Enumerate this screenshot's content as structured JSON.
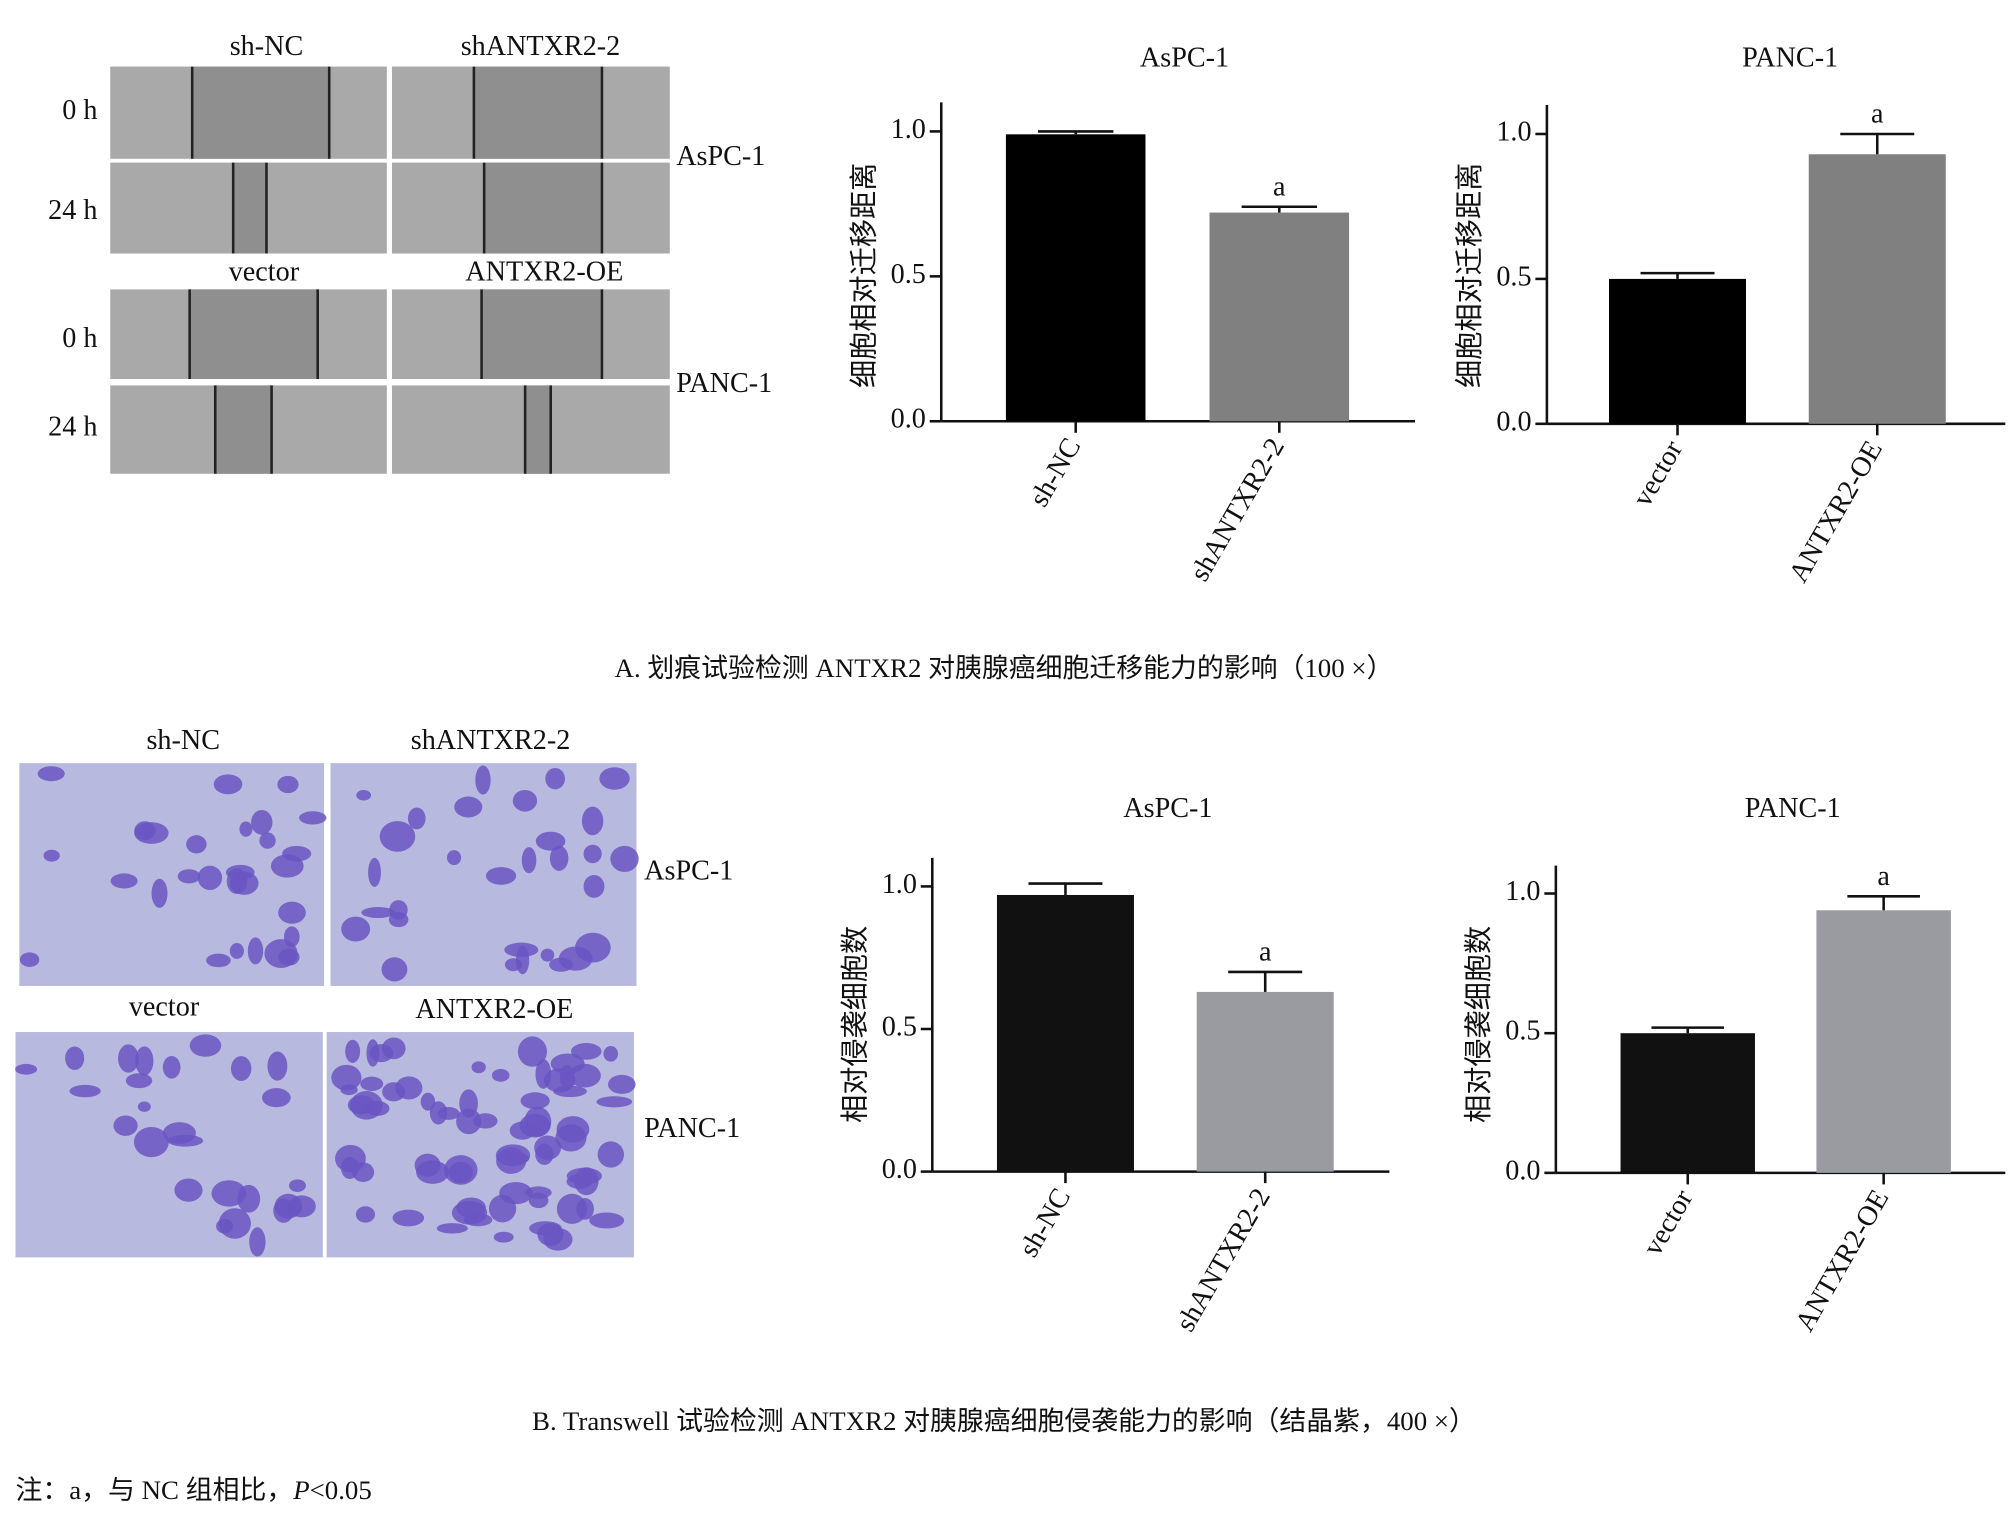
{
  "figure_a": {
    "column_labels": [
      "sh-NC",
      "shANTXR2-2",
      "vector",
      "ANTXR2-OE"
    ],
    "row_labels": [
      "0 h",
      "24 h",
      "0 h",
      "24 h"
    ],
    "cell_lines": [
      "AsPC-1",
      "PANC-1"
    ],
    "caption": "A. 划痕试验检测 ANTXR2 对胰腺癌细胞迁移能力的影响（100 ×）"
  },
  "figure_b": {
    "column_labels": [
      "sh-NC",
      "shANTXR2-2",
      "vector",
      "ANTXR2-OE"
    ],
    "cell_lines": [
      "AsPC-1",
      "PANC-1"
    ],
    "caption": "B. Transwell 试验检测 ANTXR2 对胰腺癌细胞侵袭能力的影响（结晶紫，400 ×）"
  },
  "note": {
    "parts": [
      "注：a，与 NC 组相比，",
      "P",
      "<0.05"
    ]
  },
  "chart_data": [
    {
      "type": "bar",
      "title": "AsPC-1",
      "y_label": "细胞相对迁移距离",
      "categories": [
        "sh-NC",
        "shANTXR2-2"
      ],
      "values": [
        0.99,
        0.72
      ],
      "errors": [
        0.01,
        0.02
      ],
      "significance": [
        null,
        "a"
      ],
      "colors": [
        "#000000",
        "#808080"
      ],
      "ylim": [
        0,
        1.1
      ],
      "yticks": [
        {
          "value": 0,
          "label": "0.0"
        },
        {
          "value": 0.5,
          "label": "0.5"
        },
        {
          "value": 1,
          "label": "1.0"
        }
      ]
    },
    {
      "type": "bar",
      "title": "PANC-1",
      "y_label": "细胞相对迁移距离",
      "categories": [
        "vector",
        "ANTXR2-OE"
      ],
      "values": [
        0.5,
        0.93
      ],
      "errors": [
        0.02,
        0.07
      ],
      "significance": [
        null,
        "a"
      ],
      "colors": [
        "#000000",
        "#808080"
      ],
      "ylim": [
        0,
        1.1
      ],
      "yticks": [
        {
          "value": 0,
          "label": "0.0"
        },
        {
          "value": 0.5,
          "label": "0.5"
        },
        {
          "value": 1,
          "label": "1.0"
        }
      ]
    },
    {
      "type": "bar",
      "title": "AsPC-1",
      "y_label": "相对侵袭细胞数",
      "categories": [
        "sh-NC",
        "shANTXR2-2"
      ],
      "values": [
        0.97,
        0.63
      ],
      "errors": [
        0.04,
        0.07
      ],
      "significance": [
        null,
        "a"
      ],
      "colors": [
        "#111111",
        "#9a9ba0"
      ],
      "ylim": [
        0,
        1.1
      ],
      "yticks": [
        {
          "value": 0,
          "label": "0.0"
        },
        {
          "value": 0.5,
          "label": "0.5"
        },
        {
          "value": 1,
          "label": "1.0"
        }
      ]
    },
    {
      "type": "bar",
      "title": "PANC-1",
      "y_label": "相对侵袭细胞数",
      "categories": [
        "vector",
        "ANTXR2-OE"
      ],
      "values": [
        0.5,
        0.94
      ],
      "errors": [
        0.02,
        0.05
      ],
      "significance": [
        null,
        "a"
      ],
      "colors": [
        "#111111",
        "#9a9ba0"
      ],
      "ylim": [
        0,
        1.1
      ],
      "yticks": [
        {
          "value": 0,
          "label": "0.0"
        },
        {
          "value": 0.5,
          "label": "0.5"
        },
        {
          "value": 1,
          "label": "1.0"
        }
      ]
    }
  ]
}
